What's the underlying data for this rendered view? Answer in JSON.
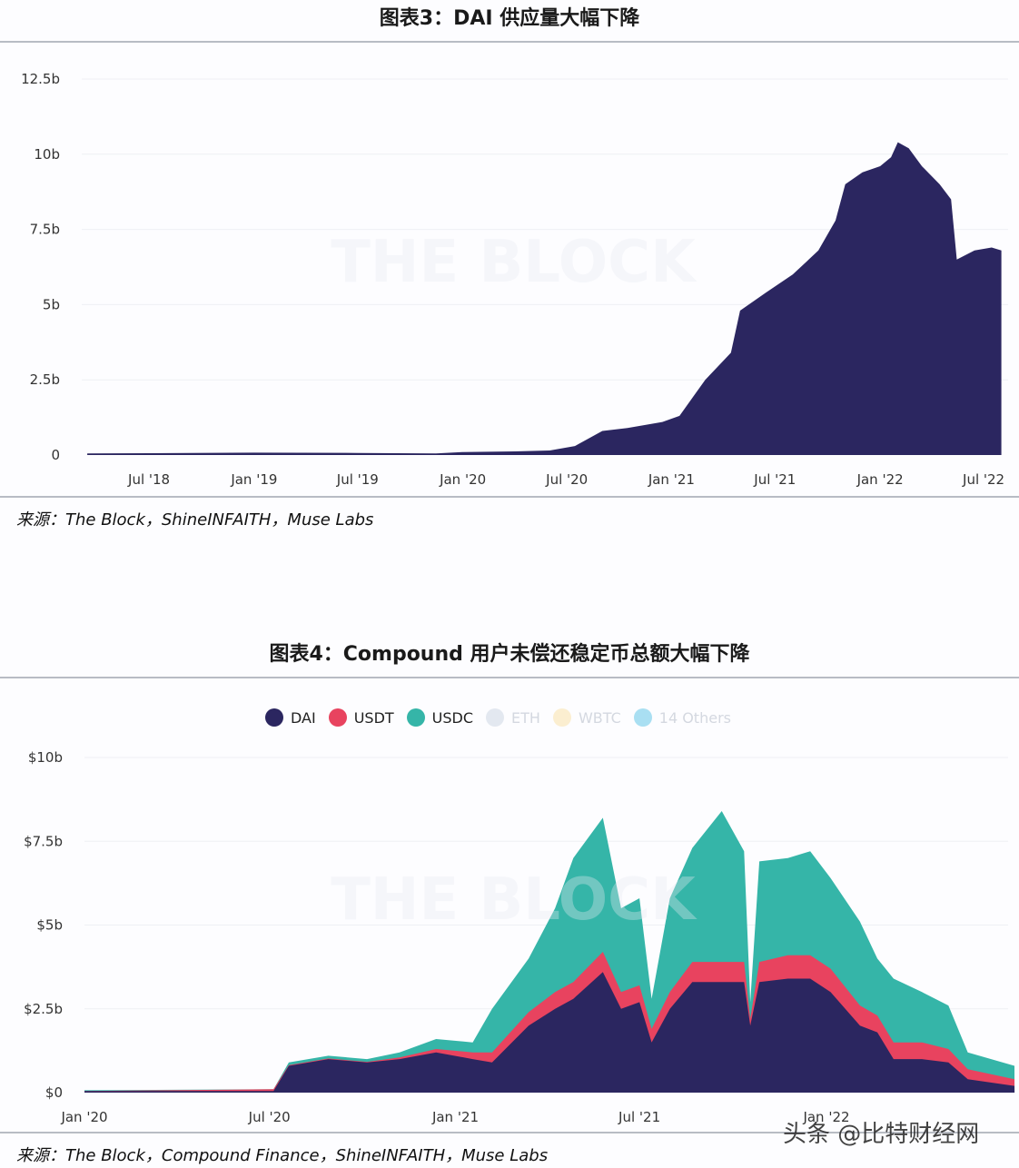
{
  "figure3": {
    "title": "图表3：DAI 供应量大幅下降",
    "source": "来源：The Block，ShineINFAITH，Muse Labs",
    "watermark": "THE BLOCK"
  },
  "figure4": {
    "title": "图表4：Compound 用户未偿还稳定币总额大幅下降",
    "source": "来源：The Block，Compound Finance，ShineINFAITH，Muse Labs",
    "watermark": "THE BLOCK"
  },
  "page_watermark": "头条 @比特财经网",
  "chart_data": [
    {
      "type": "area",
      "title": "图表3：DAI 供应量大幅下降",
      "ylim": [
        0,
        12.5
      ],
      "y_unit": "b",
      "grid": true,
      "color": "#2b2660",
      "y_ticks": [
        {
          "v": 0,
          "label": "0"
        },
        {
          "v": 2.5,
          "label": "2.5b"
        },
        {
          "v": 5,
          "label": "5b"
        },
        {
          "v": 7.5,
          "label": "7.5b"
        },
        {
          "v": 10,
          "label": "10b"
        },
        {
          "v": 12.5,
          "label": "12.5b"
        }
      ],
      "x_ticks": [
        {
          "d": "2018-07-01",
          "label": "Jul '18"
        },
        {
          "d": "2019-01-01",
          "label": "Jan '19"
        },
        {
          "d": "2019-07-01",
          "label": "Jul '19"
        },
        {
          "d": "2020-01-01",
          "label": "Jan '20"
        },
        {
          "d": "2020-07-01",
          "label": "Jul '20"
        },
        {
          "d": "2021-01-01",
          "label": "Jan '21"
        },
        {
          "d": "2021-07-01",
          "label": "Jul '21"
        },
        {
          "d": "2022-01-01",
          "label": "Jan '22"
        },
        {
          "d": "2022-07-01",
          "label": "Jul '22"
        }
      ],
      "x": [
        "2018-03-15",
        "2018-07-01",
        "2019-01-01",
        "2019-07-01",
        "2019-11-15",
        "2020-01-01",
        "2020-04-01",
        "2020-06-01",
        "2020-07-15",
        "2020-09-01",
        "2020-10-15",
        "2020-12-15",
        "2021-01-15",
        "2021-03-01",
        "2021-04-15",
        "2021-05-01",
        "2021-06-15",
        "2021-08-01",
        "2021-09-15",
        "2021-10-15",
        "2021-11-01",
        "2021-12-01",
        "2022-01-01",
        "2022-01-20",
        "2022-02-01",
        "2022-02-20",
        "2022-03-15",
        "2022-04-15",
        "2022-05-05",
        "2022-05-15",
        "2022-06-15",
        "2022-07-15",
        "2022-08-01"
      ],
      "values": [
        0.05,
        0.06,
        0.08,
        0.07,
        0.05,
        0.1,
        0.12,
        0.15,
        0.3,
        0.8,
        0.9,
        1.1,
        1.3,
        2.5,
        3.4,
        4.8,
        5.4,
        6.0,
        6.8,
        7.8,
        9.0,
        9.4,
        9.6,
        9.9,
        10.4,
        10.2,
        9.6,
        9.0,
        8.5,
        6.5,
        6.8,
        6.9,
        6.8
      ]
    },
    {
      "type": "area",
      "stacked": true,
      "title": "图表4：Compound 用户未偿还稳定币总额大幅下降",
      "ylim": [
        0,
        10
      ],
      "grid": true,
      "legend_placement": "top",
      "legend": [
        {
          "name": "DAI",
          "color": "#2b2660"
        },
        {
          "name": "USDT",
          "color": "#e8435f"
        },
        {
          "name": "USDC",
          "color": "#35b5a8"
        },
        {
          "name": "ETH",
          "color": "#e3e8f0"
        },
        {
          "name": "WBTC",
          "color": "#fbeed0"
        },
        {
          "name": "14 Others",
          "color": "#a9dff2"
        }
      ],
      "y_ticks": [
        {
          "v": 0,
          "label": "$0"
        },
        {
          "v": 2.5,
          "label": "$2.5b"
        },
        {
          "v": 5,
          "label": "$5b"
        },
        {
          "v": 7.5,
          "label": "$7.5b"
        },
        {
          "v": 10,
          "label": "$10b"
        }
      ],
      "x_ticks": [
        {
          "d": "2020-01-01",
          "label": "Jan '20"
        },
        {
          "d": "2020-07-01",
          "label": "Jul '20"
        },
        {
          "d": "2021-01-01",
          "label": "Jan '21"
        },
        {
          "d": "2021-07-01",
          "label": "Jul '21"
        },
        {
          "d": "2022-01-01",
          "label": "Jan '22"
        }
      ],
      "x": [
        "2020-01-01",
        "2020-07-05",
        "2020-07-20",
        "2020-08-28",
        "2020-10-05",
        "2020-11-06",
        "2020-12-12",
        "2021-01-18",
        "2021-02-06",
        "2021-03-14",
        "2021-04-09",
        "2021-04-27",
        "2021-05-26",
        "2021-06-13",
        "2021-07-01",
        "2021-07-13",
        "2021-07-31",
        "2021-08-22",
        "2021-09-20",
        "2021-10-12",
        "2021-10-18",
        "2021-10-27",
        "2021-11-24",
        "2021-12-16",
        "2022-01-05",
        "2022-02-03",
        "2022-02-20",
        "2022-03-08",
        "2022-04-05",
        "2022-05-01",
        "2022-05-20",
        "2022-07-05"
      ],
      "series": [
        {
          "name": "DAI",
          "values": [
            0.05,
            0.05,
            0.8,
            1.0,
            0.9,
            1.0,
            1.2,
            1.0,
            0.9,
            2.0,
            2.5,
            2.8,
            3.6,
            2.5,
            2.7,
            1.5,
            2.5,
            3.3,
            3.3,
            3.3,
            2.0,
            3.3,
            3.4,
            3.4,
            3.0,
            2.0,
            1.8,
            1.0,
            1.0,
            0.9,
            0.4,
            0.2
          ]
        },
        {
          "name": "USDT",
          "values": [
            0,
            0.05,
            0.02,
            0.02,
            0.02,
            0.05,
            0.1,
            0.2,
            0.3,
            0.4,
            0.5,
            0.5,
            0.6,
            0.5,
            0.5,
            0.4,
            0.5,
            0.6,
            0.6,
            0.6,
            0.2,
            0.6,
            0.7,
            0.7,
            0.7,
            0.6,
            0.5,
            0.5,
            0.5,
            0.4,
            0.3,
            0.2
          ]
        },
        {
          "name": "USDC",
          "values": [
            0.02,
            0,
            0.08,
            0.08,
            0.08,
            0.15,
            0.3,
            0.3,
            1.3,
            1.6,
            2.5,
            3.7,
            4.0,
            2.5,
            2.6,
            0.9,
            2.8,
            3.4,
            4.5,
            3.3,
            0.5,
            3.0,
            2.9,
            3.1,
            2.7,
            2.5,
            1.7,
            1.9,
            1.5,
            1.3,
            0.5,
            0.4
          ]
        }
      ]
    }
  ]
}
